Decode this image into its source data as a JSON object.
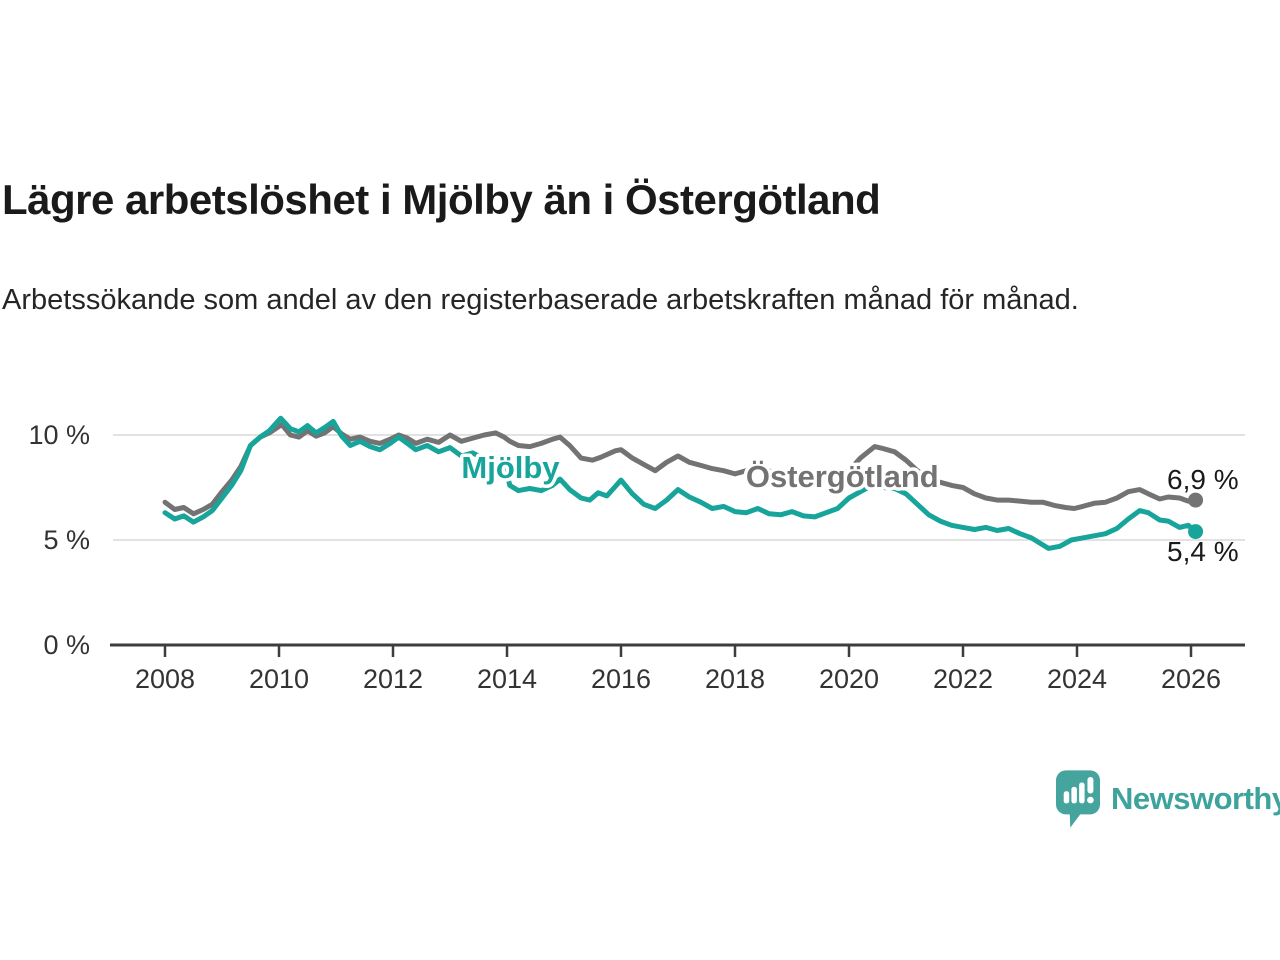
{
  "title": "Lägre arbetslöshet i Mjölby än i Östergötland",
  "subtitle": "Arbetssökande som andel av den registerbaserade arbetskraften månad för månad.",
  "branding": {
    "name": "Newsworthy"
  },
  "colors": {
    "mjolby": "#17A49B",
    "ostergotland": "#737373",
    "grid": "#D8D8D8",
    "axis": "#3D3D3D",
    "axis_text": "#333333",
    "label_text": "#1A1A1A",
    "logo_teal": "#45A49E",
    "background": "#FFFFFF"
  },
  "chart_data": {
    "type": "line",
    "unit": "%",
    "xlim": [
      2007.85,
      2027.0
    ],
    "ylim": [
      0,
      11.5
    ],
    "grid": "horizontal",
    "legend_position": "inline-labels",
    "x_ticks": [
      {
        "value": 2008,
        "label": "2008"
      },
      {
        "value": 2010,
        "label": "2010"
      },
      {
        "value": 2012,
        "label": "2012"
      },
      {
        "value": 2014,
        "label": "2014"
      },
      {
        "value": 2016,
        "label": "2016"
      },
      {
        "value": 2018,
        "label": "2018"
      },
      {
        "value": 2020,
        "label": "2020"
      },
      {
        "value": 2022,
        "label": "2022"
      },
      {
        "value": 2024,
        "label": "2024"
      },
      {
        "value": 2026,
        "label": "2026"
      }
    ],
    "y_ticks": [
      {
        "value": 0,
        "label": "0 %"
      },
      {
        "value": 5,
        "label": "5 %"
      },
      {
        "value": 10,
        "label": "10 %"
      }
    ],
    "series": [
      {
        "name": "Mjölby",
        "color_key": "mjolby",
        "end_value_label": "5,4 %",
        "points": [
          [
            2008.0,
            6.3
          ],
          [
            2008.17,
            6.0
          ],
          [
            2008.33,
            6.15
          ],
          [
            2008.5,
            5.85
          ],
          [
            2008.67,
            6.1
          ],
          [
            2008.83,
            6.4
          ],
          [
            2009.0,
            7.0
          ],
          [
            2009.17,
            7.6
          ],
          [
            2009.33,
            8.3
          ],
          [
            2009.5,
            9.5
          ],
          [
            2009.67,
            9.9
          ],
          [
            2009.83,
            10.2
          ],
          [
            2010.03,
            10.8
          ],
          [
            2010.2,
            10.3
          ],
          [
            2010.35,
            10.15
          ],
          [
            2010.5,
            10.45
          ],
          [
            2010.65,
            10.1
          ],
          [
            2010.8,
            10.35
          ],
          [
            2010.95,
            10.65
          ],
          [
            2011.1,
            9.95
          ],
          [
            2011.25,
            9.5
          ],
          [
            2011.42,
            9.7
          ],
          [
            2011.6,
            9.45
          ],
          [
            2011.77,
            9.3
          ],
          [
            2011.95,
            9.6
          ],
          [
            2012.1,
            9.9
          ],
          [
            2012.25,
            9.6
          ],
          [
            2012.4,
            9.3
          ],
          [
            2012.6,
            9.5
          ],
          [
            2012.8,
            9.2
          ],
          [
            2013.0,
            9.4
          ],
          [
            2013.2,
            9.0
          ],
          [
            2013.4,
            9.15
          ],
          [
            2013.6,
            8.85
          ],
          [
            2013.8,
            8.9
          ],
          [
            2013.95,
            8.7
          ],
          [
            2014.05,
            7.6
          ],
          [
            2014.2,
            7.35
          ],
          [
            2014.4,
            7.45
          ],
          [
            2014.6,
            7.35
          ],
          [
            2014.8,
            7.6
          ],
          [
            2014.93,
            7.9
          ],
          [
            2015.1,
            7.4
          ],
          [
            2015.3,
            7.0
          ],
          [
            2015.45,
            6.9
          ],
          [
            2015.6,
            7.25
          ],
          [
            2015.75,
            7.1
          ],
          [
            2015.9,
            7.55
          ],
          [
            2016.0,
            7.85
          ],
          [
            2016.2,
            7.2
          ],
          [
            2016.4,
            6.7
          ],
          [
            2016.6,
            6.5
          ],
          [
            2016.8,
            6.9
          ],
          [
            2017.0,
            7.4
          ],
          [
            2017.2,
            7.05
          ],
          [
            2017.4,
            6.8
          ],
          [
            2017.6,
            6.5
          ],
          [
            2017.8,
            6.6
          ],
          [
            2018.0,
            6.35
          ],
          [
            2018.2,
            6.3
          ],
          [
            2018.4,
            6.5
          ],
          [
            2018.6,
            6.25
          ],
          [
            2018.8,
            6.2
          ],
          [
            2019.0,
            6.35
          ],
          [
            2019.2,
            6.15
          ],
          [
            2019.4,
            6.1
          ],
          [
            2019.6,
            6.3
          ],
          [
            2019.8,
            6.5
          ],
          [
            2020.0,
            7.0
          ],
          [
            2020.2,
            7.3
          ],
          [
            2020.4,
            7.6
          ],
          [
            2020.6,
            7.5
          ],
          [
            2020.8,
            7.45
          ],
          [
            2021.0,
            7.2
          ],
          [
            2021.2,
            6.7
          ],
          [
            2021.4,
            6.2
          ],
          [
            2021.6,
            5.9
          ],
          [
            2021.8,
            5.7
          ],
          [
            2022.0,
            5.6
          ],
          [
            2022.2,
            5.5
          ],
          [
            2022.4,
            5.6
          ],
          [
            2022.6,
            5.45
          ],
          [
            2022.8,
            5.55
          ],
          [
            2023.0,
            5.3
          ],
          [
            2023.2,
            5.1
          ],
          [
            2023.35,
            4.85
          ],
          [
            2023.5,
            4.6
          ],
          [
            2023.7,
            4.7
          ],
          [
            2023.9,
            5.0
          ],
          [
            2024.1,
            5.1
          ],
          [
            2024.3,
            5.2
          ],
          [
            2024.5,
            5.3
          ],
          [
            2024.7,
            5.55
          ],
          [
            2024.9,
            6.0
          ],
          [
            2025.1,
            6.4
          ],
          [
            2025.25,
            6.3
          ],
          [
            2025.45,
            5.95
          ],
          [
            2025.6,
            5.9
          ],
          [
            2025.8,
            5.6
          ],
          [
            2025.95,
            5.7
          ],
          [
            2026.08,
            5.4
          ]
        ]
      },
      {
        "name": "Östergötland",
        "color_key": "ostergotland",
        "end_value_label": "6,9 %",
        "points": [
          [
            2008.0,
            6.8
          ],
          [
            2008.17,
            6.45
          ],
          [
            2008.33,
            6.55
          ],
          [
            2008.5,
            6.25
          ],
          [
            2008.67,
            6.45
          ],
          [
            2008.83,
            6.7
          ],
          [
            2009.0,
            7.3
          ],
          [
            2009.17,
            7.85
          ],
          [
            2009.33,
            8.5
          ],
          [
            2009.5,
            9.5
          ],
          [
            2009.67,
            9.9
          ],
          [
            2009.83,
            10.1
          ],
          [
            2010.05,
            10.5
          ],
          [
            2010.2,
            10.0
          ],
          [
            2010.35,
            9.9
          ],
          [
            2010.5,
            10.2
          ],
          [
            2010.65,
            9.95
          ],
          [
            2010.8,
            10.1
          ],
          [
            2010.95,
            10.4
          ],
          [
            2011.1,
            10.05
          ],
          [
            2011.25,
            9.8
          ],
          [
            2011.42,
            9.9
          ],
          [
            2011.6,
            9.7
          ],
          [
            2011.77,
            9.6
          ],
          [
            2011.95,
            9.8
          ],
          [
            2012.1,
            10.0
          ],
          [
            2012.25,
            9.85
          ],
          [
            2012.4,
            9.6
          ],
          [
            2012.6,
            9.8
          ],
          [
            2012.8,
            9.65
          ],
          [
            2013.0,
            10.0
          ],
          [
            2013.2,
            9.7
          ],
          [
            2013.4,
            9.85
          ],
          [
            2013.6,
            10.0
          ],
          [
            2013.8,
            10.1
          ],
          [
            2013.95,
            9.9
          ],
          [
            2014.05,
            9.7
          ],
          [
            2014.2,
            9.5
          ],
          [
            2014.4,
            9.45
          ],
          [
            2014.6,
            9.6
          ],
          [
            2014.8,
            9.8
          ],
          [
            2014.93,
            9.9
          ],
          [
            2015.1,
            9.5
          ],
          [
            2015.3,
            8.9
          ],
          [
            2015.5,
            8.8
          ],
          [
            2015.65,
            8.95
          ],
          [
            2015.9,
            9.25
          ],
          [
            2016.0,
            9.3
          ],
          [
            2016.2,
            8.9
          ],
          [
            2016.4,
            8.6
          ],
          [
            2016.6,
            8.3
          ],
          [
            2016.8,
            8.7
          ],
          [
            2017.0,
            9.0
          ],
          [
            2017.2,
            8.7
          ],
          [
            2017.4,
            8.55
          ],
          [
            2017.6,
            8.4
          ],
          [
            2017.8,
            8.3
          ],
          [
            2018.0,
            8.15
          ],
          [
            2018.2,
            8.3
          ],
          [
            2018.4,
            8.5
          ],
          [
            2018.6,
            8.3
          ],
          [
            2018.8,
            8.0
          ],
          [
            2019.0,
            7.95
          ],
          [
            2019.2,
            8.1
          ],
          [
            2019.4,
            7.95
          ],
          [
            2019.6,
            7.9
          ],
          [
            2019.8,
            8.1
          ],
          [
            2020.0,
            8.3
          ],
          [
            2020.2,
            8.9
          ],
          [
            2020.45,
            9.45
          ],
          [
            2020.6,
            9.35
          ],
          [
            2020.8,
            9.2
          ],
          [
            2021.0,
            8.8
          ],
          [
            2021.2,
            8.3
          ],
          [
            2021.4,
            7.95
          ],
          [
            2021.6,
            7.75
          ],
          [
            2021.8,
            7.6
          ],
          [
            2022.0,
            7.5
          ],
          [
            2022.2,
            7.2
          ],
          [
            2022.4,
            7.0
          ],
          [
            2022.6,
            6.9
          ],
          [
            2022.8,
            6.9
          ],
          [
            2023.0,
            6.85
          ],
          [
            2023.2,
            6.8
          ],
          [
            2023.4,
            6.8
          ],
          [
            2023.6,
            6.65
          ],
          [
            2023.8,
            6.55
          ],
          [
            2023.95,
            6.5
          ],
          [
            2024.1,
            6.6
          ],
          [
            2024.3,
            6.75
          ],
          [
            2024.5,
            6.8
          ],
          [
            2024.7,
            7.0
          ],
          [
            2024.9,
            7.3
          ],
          [
            2025.1,
            7.4
          ],
          [
            2025.25,
            7.2
          ],
          [
            2025.45,
            6.95
          ],
          [
            2025.6,
            7.05
          ],
          [
            2025.8,
            7.0
          ],
          [
            2025.95,
            6.85
          ],
          [
            2026.08,
            6.9
          ]
        ]
      }
    ],
    "annotations": [
      {
        "text": "Mjölby",
        "year": 2013.2,
        "value": 7.95,
        "color_key": "mjolby",
        "size": 31,
        "weight": 700,
        "halo": true,
        "name": "mjolby-series-label"
      },
      {
        "text": "Östergötland",
        "year": 2018.19,
        "value": 7.52,
        "color_key": "ostergotland",
        "size": 31,
        "weight": 700,
        "halo": true,
        "name": "ostergotland-series-label"
      },
      {
        "text": "6,9 %",
        "year": 2025.58,
        "value": 7.43,
        "color_key": "label_text",
        "size": 28,
        "weight": 400,
        "halo": false,
        "name": "ostergotland-value-label"
      },
      {
        "text": "5,4 %",
        "year": 2025.58,
        "value": 4.0,
        "color_key": "label_text",
        "size": 28,
        "weight": 400,
        "halo": false,
        "name": "mjolby-value-label"
      }
    ]
  }
}
